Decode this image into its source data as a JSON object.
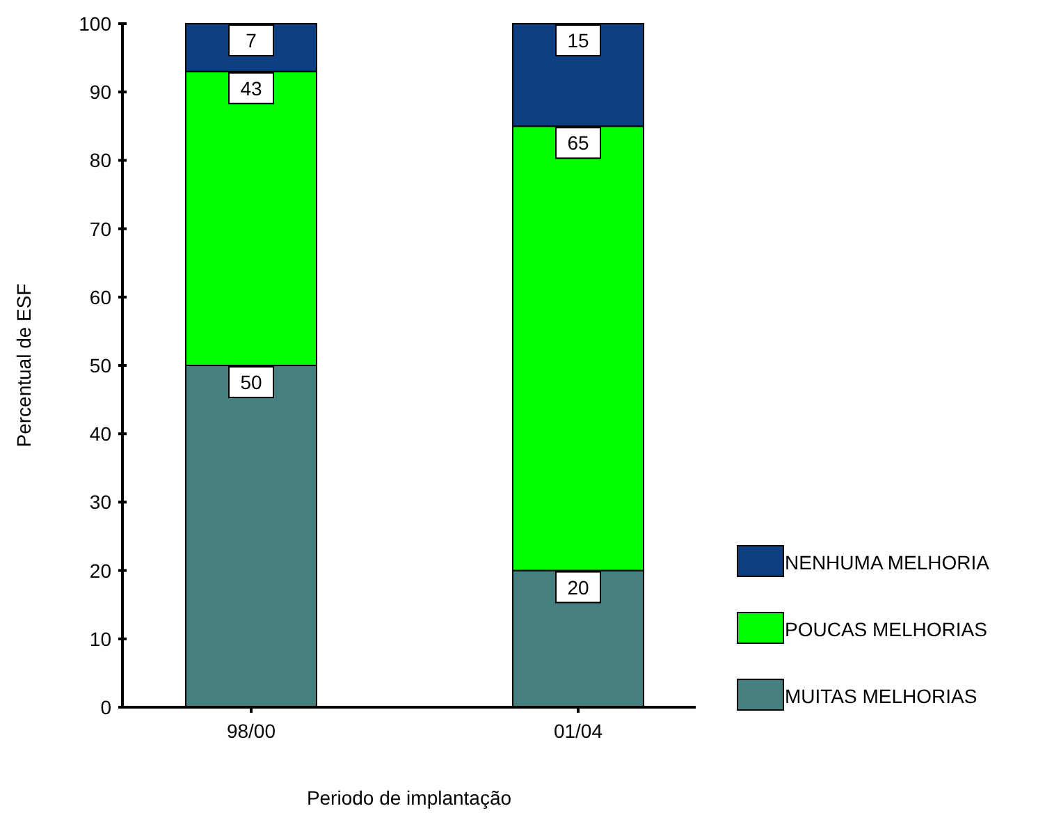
{
  "chart_data": {
    "type": "bar",
    "stacked": true,
    "xlabel": "Periodo de implantação",
    "ylabel": "Percentual de ESF",
    "categories": [
      "98/00",
      "01/04"
    ],
    "series": [
      {
        "name": "MUITAS MELHORIAS",
        "color": "#457f7f",
        "values": [
          50,
          20
        ]
      },
      {
        "name": "POUCAS MELHORIAS",
        "color": "#00ff00",
        "values": [
          43,
          65
        ]
      },
      {
        "name": "NENHUMA MELHORIA",
        "color": "#0d3f82",
        "values": [
          7,
          15
        ]
      }
    ],
    "ylim": [
      0,
      100
    ],
    "yticks": [
      0,
      10,
      20,
      30,
      40,
      50,
      60,
      70,
      80,
      90,
      100
    ],
    "data_labels": true,
    "legend": "bottom right",
    "grid": false
  }
}
